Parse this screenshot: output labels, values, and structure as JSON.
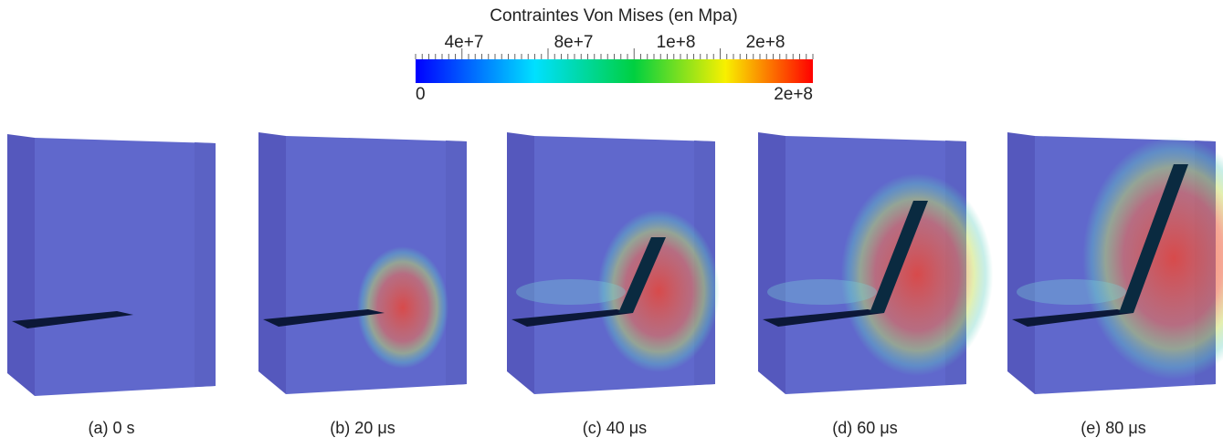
{
  "colorbar": {
    "title": "Contraintes Von Mises (en Mpa)",
    "top_labels": [
      "4e+7",
      "8e+7",
      "1e+8",
      "2e+8"
    ],
    "min_label": "0",
    "max_label": "2e+8"
  },
  "panels": [
    {
      "caption": "(a) 0 s"
    },
    {
      "caption": "(b) 20 μs"
    },
    {
      "caption": "(c) 40 μs"
    },
    {
      "caption": "(d) 60 μs"
    },
    {
      "caption": "(e) 80 μs"
    }
  ]
}
